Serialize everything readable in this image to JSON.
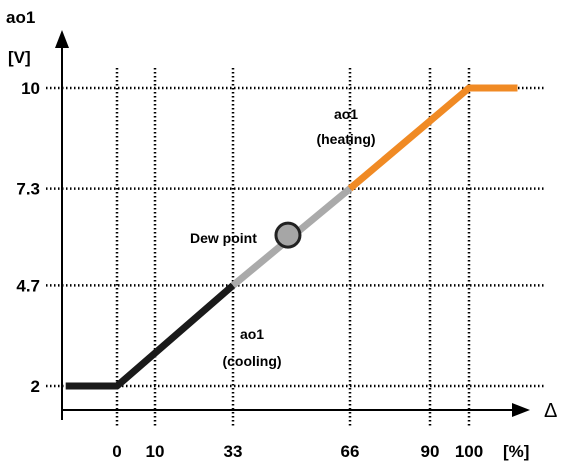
{
  "chart_data": {
    "type": "line",
    "ylabel": "ao1",
    "yunit": "[V]",
    "xlabel": "Δ",
    "xunit": "[%]",
    "x_ticks": [
      0,
      10,
      33,
      66,
      90,
      100
    ],
    "y_ticks": [
      2,
      4.7,
      7.3,
      10
    ],
    "y_tick_labels": [
      "2",
      "4.7",
      "7.3",
      "10"
    ],
    "grid": true,
    "series": [
      {
        "name": "ao1 (cooling)",
        "color": "#1a1a1a",
        "points": [
          [
            -14,
            2
          ],
          [
            0,
            2
          ],
          [
            33,
            4.7
          ]
        ]
      },
      {
        "name": "",
        "color": "#aaaaaa",
        "points": [
          [
            33,
            4.7
          ],
          [
            66,
            7.3
          ]
        ]
      },
      {
        "name": "ao1 (heating)",
        "color": "#f08a24",
        "points": [
          [
            66,
            7.3
          ],
          [
            100,
            10
          ],
          [
            113,
            10
          ]
        ]
      }
    ],
    "dew_point": {
      "label": "Dew point",
      "x": 48.5,
      "y": 6.05
    },
    "annotations": {
      "cooling": [
        "ao1",
        "(cooling)"
      ],
      "heating": [
        "ao1",
        "(heating)"
      ]
    }
  }
}
